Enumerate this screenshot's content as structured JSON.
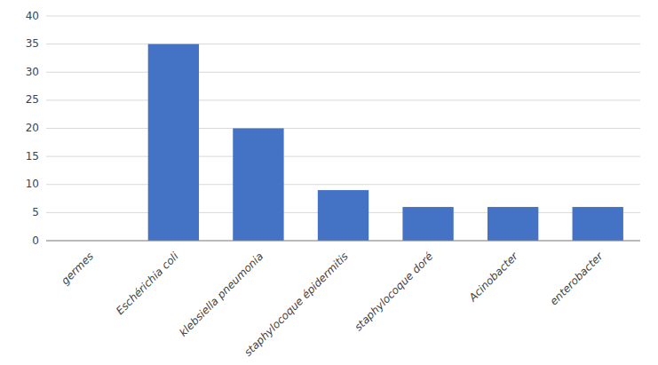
{
  "chart_data": {
    "type": "bar",
    "categories": [
      "germes",
      "Eschérichia coli",
      "klebsiella pneumonia",
      "staphylocoque épidermitis",
      "staphylocoque doré",
      "Acinobacter",
      "enterobacter"
    ],
    "values": [
      0,
      35,
      20,
      9,
      6,
      6,
      6
    ],
    "color": "#4472C4",
    "ylim": [
      0,
      40
    ],
    "yticks": [
      0,
      5,
      10,
      15,
      20,
      25,
      30,
      35,
      40
    ],
    "grid": true
  }
}
